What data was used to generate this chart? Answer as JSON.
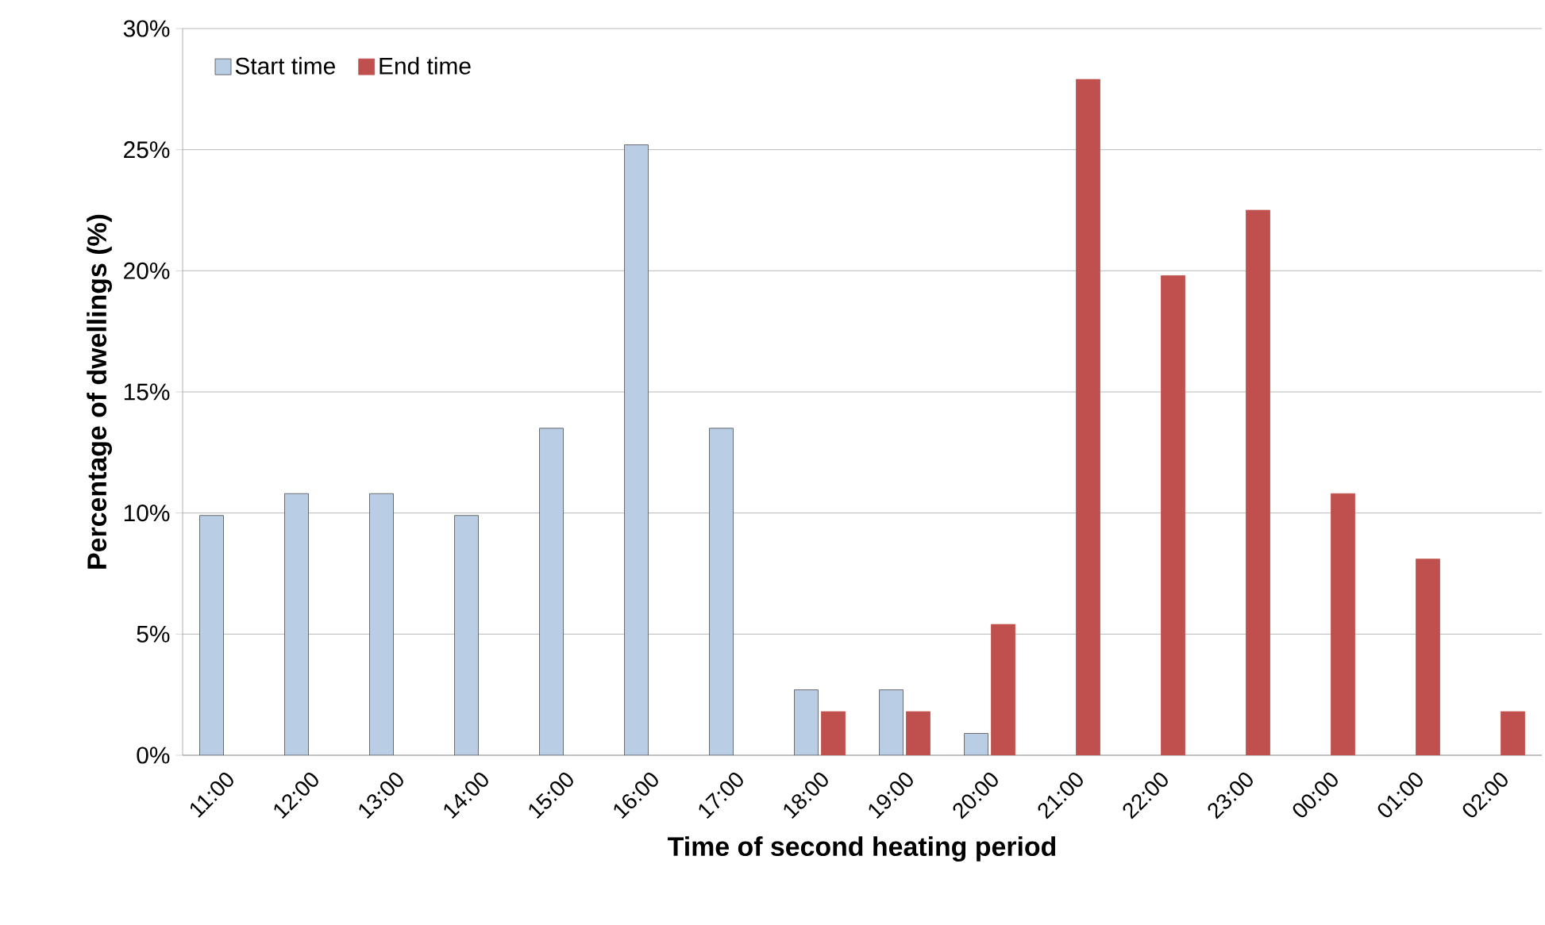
{
  "chart_data": {
    "type": "bar",
    "xlabel": "Time of second heating period",
    "ylabel": "Percentage of dwellings (%)",
    "categories": [
      "11:00",
      "12:00",
      "13:00",
      "14:00",
      "15:00",
      "16:00",
      "17:00",
      "18:00",
      "19:00",
      "20:00",
      "21:00",
      "22:00",
      "23:00",
      "00:00",
      "01:00",
      "02:00"
    ],
    "series": [
      {
        "name": "Start time",
        "color": "#b9cde5",
        "values": [
          9.9,
          10.8,
          10.8,
          9.9,
          13.5,
          25.2,
          13.5,
          2.7,
          2.7,
          0.9,
          null,
          null,
          null,
          null,
          null,
          null
        ]
      },
      {
        "name": "End time",
        "color": "#c0504d",
        "values": [
          null,
          null,
          null,
          null,
          null,
          null,
          null,
          1.8,
          1.8,
          5.4,
          27.9,
          19.8,
          22.5,
          10.8,
          8.1,
          1.8
        ]
      }
    ],
    "ylim": [
      0,
      30
    ],
    "yticks": [
      {
        "value": 0,
        "label": "0%"
      },
      {
        "value": 5,
        "label": "5%"
      },
      {
        "value": 10,
        "label": "10%"
      },
      {
        "value": 15,
        "label": "15%"
      },
      {
        "value": 20,
        "label": "20%"
      },
      {
        "value": 25,
        "label": "25%"
      },
      {
        "value": 30,
        "label": "30%"
      }
    ],
    "grid": "y",
    "legend": "top left"
  }
}
